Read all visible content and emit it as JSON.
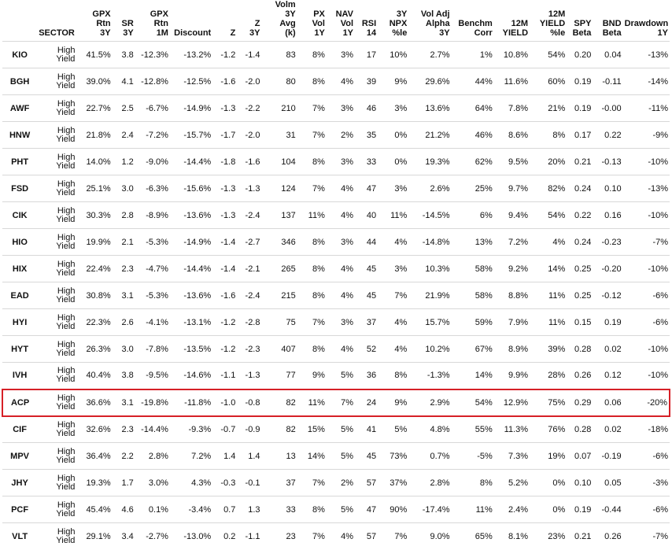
{
  "headers": [
    "",
    "SECTOR",
    "GPX\nRtn\n3Y",
    "SR\n3Y",
    "GPX\nRtn\n1M",
    "Discount",
    "Z",
    "Z\n3Y",
    "Volm\n3Y\nAvg\n(k)",
    "PX\nVol\n1Y",
    "NAV\nVol\n1Y",
    "RSI\n14",
    "3Y\nNPX\n%le",
    "Vol Adj\nAlpha\n3Y",
    "Benchm\nCorr",
    "12M\nYIELD",
    "12M\nYIELD\n%le",
    "SPY\nBeta",
    "BND\nBeta",
    "Drawdown\n1Y"
  ],
  "highlighted_ticker": "ACP",
  "rows": [
    [
      "KIO",
      "High\nYield",
      "41.5%",
      "3.8",
      "-12.3%",
      "-13.2%",
      "-1.2",
      "-1.4",
      "83",
      "8%",
      "3%",
      "17",
      "10%",
      "2.7%",
      "1%",
      "10.8%",
      "54%",
      "0.20",
      "0.04",
      "-13%"
    ],
    [
      "BGH",
      "High\nYield",
      "39.0%",
      "4.1",
      "-12.8%",
      "-12.5%",
      "-1.6",
      "-2.0",
      "80",
      "8%",
      "4%",
      "39",
      "9%",
      "29.6%",
      "44%",
      "11.6%",
      "60%",
      "0.19",
      "-0.11",
      "-14%"
    ],
    [
      "AWF",
      "High\nYield",
      "22.7%",
      "2.5",
      "-6.7%",
      "-14.9%",
      "-1.3",
      "-2.2",
      "210",
      "7%",
      "3%",
      "46",
      "3%",
      "13.6%",
      "64%",
      "7.8%",
      "21%",
      "0.19",
      "-0.00",
      "-11%"
    ],
    [
      "HNW",
      "High\nYield",
      "21.8%",
      "2.4",
      "-7.2%",
      "-15.7%",
      "-1.7",
      "-2.0",
      "31",
      "7%",
      "2%",
      "35",
      "0%",
      "21.2%",
      "46%",
      "8.6%",
      "8%",
      "0.17",
      "0.22",
      "-9%"
    ],
    [
      "PHT",
      "High\nYield",
      "14.0%",
      "1.2",
      "-9.0%",
      "-14.4%",
      "-1.8",
      "-1.6",
      "104",
      "8%",
      "3%",
      "33",
      "0%",
      "19.3%",
      "62%",
      "9.5%",
      "20%",
      "0.21",
      "-0.13",
      "-10%"
    ],
    [
      "FSD",
      "High\nYield",
      "25.1%",
      "3.0",
      "-6.3%",
      "-15.6%",
      "-1.3",
      "-1.3",
      "124",
      "7%",
      "4%",
      "47",
      "3%",
      "2.6%",
      "25%",
      "9.7%",
      "82%",
      "0.24",
      "0.10",
      "-13%"
    ],
    [
      "CIK",
      "High\nYield",
      "30.3%",
      "2.8",
      "-8.9%",
      "-13.6%",
      "-1.3",
      "-2.4",
      "137",
      "11%",
      "4%",
      "40",
      "11%",
      "-14.5%",
      "6%",
      "9.4%",
      "54%",
      "0.22",
      "0.16",
      "-10%"
    ],
    [
      "HIO",
      "High\nYield",
      "19.9%",
      "2.1",
      "-5.3%",
      "-14.9%",
      "-1.4",
      "-2.7",
      "346",
      "8%",
      "3%",
      "44",
      "4%",
      "-14.8%",
      "13%",
      "7.2%",
      "4%",
      "0.24",
      "-0.23",
      "-7%"
    ],
    [
      "HIX",
      "High\nYield",
      "22.4%",
      "2.3",
      "-4.7%",
      "-14.4%",
      "-1.4",
      "-2.1",
      "265",
      "8%",
      "4%",
      "45",
      "3%",
      "10.3%",
      "58%",
      "9.2%",
      "14%",
      "0.25",
      "-0.20",
      "-10%"
    ],
    [
      "EAD",
      "High\nYield",
      "30.8%",
      "3.1",
      "-5.3%",
      "-13.6%",
      "-1.6",
      "-2.4",
      "215",
      "8%",
      "4%",
      "45",
      "7%",
      "21.9%",
      "58%",
      "8.8%",
      "11%",
      "0.25",
      "-0.12",
      "-6%"
    ],
    [
      "HYI",
      "High\nYield",
      "22.3%",
      "2.6",
      "-4.1%",
      "-13.1%",
      "-1.2",
      "-2.8",
      "75",
      "7%",
      "3%",
      "37",
      "4%",
      "15.7%",
      "59%",
      "7.9%",
      "11%",
      "0.15",
      "0.19",
      "-6%"
    ],
    [
      "HYT",
      "High\nYield",
      "26.3%",
      "3.0",
      "-7.8%",
      "-13.5%",
      "-1.2",
      "-2.3",
      "407",
      "8%",
      "4%",
      "52",
      "4%",
      "10.2%",
      "67%",
      "8.9%",
      "39%",
      "0.28",
      "0.02",
      "-10%"
    ],
    [
      "IVH",
      "High\nYield",
      "40.4%",
      "3.8",
      "-9.5%",
      "-14.6%",
      "-1.1",
      "-1.3",
      "77",
      "9%",
      "5%",
      "36",
      "8%",
      "-1.3%",
      "14%",
      "9.9%",
      "28%",
      "0.26",
      "0.12",
      "-10%"
    ],
    [
      "ACP",
      "High\nYield",
      "36.6%",
      "3.1",
      "-19.8%",
      "-11.8%",
      "-1.0",
      "-0.8",
      "82",
      "11%",
      "7%",
      "24",
      "9%",
      "2.9%",
      "54%",
      "12.9%",
      "75%",
      "0.29",
      "0.06",
      "-20%"
    ],
    [
      "CIF",
      "High\nYield",
      "32.6%",
      "2.3",
      "-14.4%",
      "-9.3%",
      "-0.7",
      "-0.9",
      "82",
      "15%",
      "5%",
      "41",
      "5%",
      "4.8%",
      "55%",
      "11.3%",
      "76%",
      "0.28",
      "0.02",
      "-18%"
    ],
    [
      "MPV",
      "High\nYield",
      "36.4%",
      "2.2",
      "2.8%",
      "7.2%",
      "1.4",
      "1.4",
      "13",
      "14%",
      "5%",
      "45",
      "73%",
      "0.7%",
      "-5%",
      "7.3%",
      "19%",
      "0.07",
      "-0.19",
      "-6%"
    ],
    [
      "JHY",
      "High\nYield",
      "19.3%",
      "1.7",
      "3.0%",
      "4.3%",
      "-0.3",
      "-0.1",
      "37",
      "7%",
      "2%",
      "57",
      "37%",
      "2.8%",
      "8%",
      "5.2%",
      "0%",
      "0.10",
      "0.05",
      "-3%"
    ],
    [
      "PCF",
      "High\nYield",
      "45.4%",
      "4.6",
      "0.1%",
      "-3.4%",
      "0.7",
      "1.3",
      "33",
      "8%",
      "5%",
      "47",
      "90%",
      "-17.4%",
      "11%",
      "2.4%",
      "0%",
      "0.19",
      "-0.44",
      "-6%"
    ],
    [
      "VLT",
      "High\nYield",
      "29.1%",
      "3.4",
      "-2.7%",
      "-13.0%",
      "0.2",
      "-1.1",
      "23",
      "7%",
      "4%",
      "57",
      "7%",
      "9.0%",
      "65%",
      "8.1%",
      "23%",
      "0.21",
      "0.26",
      "-7%"
    ]
  ]
}
